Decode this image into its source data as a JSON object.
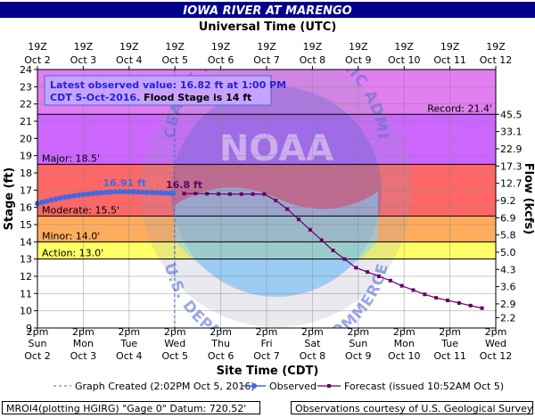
{
  "chart_data": {
    "type": "line",
    "title": "IOWA RIVER AT MARENGO",
    "top_axis_title": "Universal Time (UTC)",
    "bottom_axis_title": "Site Time (CDT)",
    "ylabel": "Stage (ft)",
    "ylabel_right": "Flow (kcfs)",
    "ylim": [
      9,
      24
    ],
    "y_ticks": [
      9,
      10,
      11,
      12,
      13,
      14,
      15,
      16,
      17,
      18,
      19,
      20,
      21,
      22,
      23,
      24
    ],
    "x_range_days": [
      0,
      10
    ],
    "top_ticks": [
      {
        "line1": "19Z",
        "line2": "Oct 2"
      },
      {
        "line1": "19Z",
        "line2": "Oct 3"
      },
      {
        "line1": "19Z",
        "line2": "Oct 4"
      },
      {
        "line1": "19Z",
        "line2": "Oct 5"
      },
      {
        "line1": "19Z",
        "line2": "Oct 6"
      },
      {
        "line1": "19Z",
        "line2": "Oct 7"
      },
      {
        "line1": "19Z",
        "line2": "Oct 8"
      },
      {
        "line1": "19Z",
        "line2": "Oct 9"
      },
      {
        "line1": "19Z",
        "line2": "Oct 10"
      },
      {
        "line1": "19Z",
        "line2": "Oct 11"
      },
      {
        "line1": "19Z",
        "line2": "Oct 12"
      }
    ],
    "bottom_ticks": [
      {
        "line1": "2pm",
        "line2": "Sun",
        "line3": "Oct 2"
      },
      {
        "line1": "2pm",
        "line2": "Mon",
        "line3": "Oct 3"
      },
      {
        "line1": "2pm",
        "line2": "Tue",
        "line3": "Oct 4"
      },
      {
        "line1": "2pm",
        "line2": "Wed",
        "line3": "Oct 5"
      },
      {
        "line1": "2pm",
        "line2": "Thu",
        "line3": "Oct 6"
      },
      {
        "line1": "2pm",
        "line2": "Fri",
        "line3": "Oct 7"
      },
      {
        "line1": "2pm",
        "line2": "Sat",
        "line3": "Oct 8"
      },
      {
        "line1": "2pm",
        "line2": "Sun",
        "line3": "Oct 9"
      },
      {
        "line1": "2pm",
        "line2": "Mon",
        "line3": "Oct 10"
      },
      {
        "line1": "2pm",
        "line2": "Tue",
        "line3": "Oct 11"
      },
      {
        "line1": "2pm",
        "line2": "Wed",
        "line3": "Oct 12"
      }
    ],
    "flow_ticks": [
      {
        "stage": 9.6,
        "label": "2.2"
      },
      {
        "stage": 10.4,
        "label": "2.9"
      },
      {
        "stage": 11.4,
        "label": "3.6"
      },
      {
        "stage": 12.4,
        "label": "4.3"
      },
      {
        "stage": 13.4,
        "label": "5.0"
      },
      {
        "stage": 14.4,
        "label": "5.8"
      },
      {
        "stage": 15.4,
        "label": "6.9"
      },
      {
        "stage": 16.4,
        "label": "9.2"
      },
      {
        "stage": 17.4,
        "label": "12.7"
      },
      {
        "stage": 18.4,
        "label": "17.3"
      },
      {
        "stage": 19.4,
        "label": "22.9"
      },
      {
        "stage": 20.4,
        "label": "33.1"
      },
      {
        "stage": 21.4,
        "label": "45.5"
      }
    ],
    "bands": [
      {
        "name": "Record",
        "from": 21.4,
        "to": 24,
        "color": "#e17ef0"
      },
      {
        "name": "Major",
        "from": 18.5,
        "to": 21.4,
        "color": "#cc66ff"
      },
      {
        "name": "Moderate",
        "from": 15.5,
        "to": 18.5,
        "color": "#ff6666"
      },
      {
        "name": "Minor",
        "from": 14.0,
        "to": 15.5,
        "color": "#ffad5c"
      },
      {
        "name": "Action",
        "from": 13.0,
        "to": 14.0,
        "color": "#ffff66"
      }
    ],
    "threshold_labels": [
      {
        "text": "Record: 21.4'",
        "stage": 21.4,
        "side": "right"
      },
      {
        "text": "Major: 18.5'",
        "stage": 18.5,
        "side": "left"
      },
      {
        "text": "Moderate: 15.5'",
        "stage": 15.5,
        "side": "left"
      },
      {
        "text": "Minor: 14.0'",
        "stage": 14.0,
        "side": "left"
      },
      {
        "text": "Action: 13.0'",
        "stage": 13.0,
        "side": "left"
      }
    ],
    "observed": {
      "name": "Observed",
      "color": "#4169e1",
      "x": [
        0,
        0.1,
        0.2,
        0.3,
        0.4,
        0.5,
        0.6,
        0.7,
        0.8,
        0.9,
        1.0,
        1.1,
        1.2,
        1.3,
        1.4,
        1.5,
        1.6,
        1.7,
        1.8,
        1.9,
        2.0,
        2.1,
        2.2,
        2.3,
        2.4,
        2.5,
        2.6,
        2.7,
        2.8,
        2.9,
        2.96
      ],
      "y": [
        16.22,
        16.29,
        16.36,
        16.42,
        16.48,
        16.54,
        16.59,
        16.63,
        16.67,
        16.71,
        16.74,
        16.77,
        16.8,
        16.83,
        16.85,
        16.87,
        16.89,
        16.9,
        16.91,
        16.91,
        16.91,
        16.9,
        16.89,
        16.88,
        16.87,
        16.86,
        16.85,
        16.84,
        16.83,
        16.82,
        16.82
      ]
    },
    "forecast": {
      "name": "Forecast (issued 10:52AM Oct 5)",
      "color": "#660066",
      "x": [
        3.2,
        3.45,
        3.7,
        3.95,
        4.2,
        4.45,
        4.7,
        4.95,
        5.2,
        5.45,
        5.7,
        5.95,
        6.2,
        6.45,
        6.7,
        6.95,
        7.2,
        7.45,
        7.7,
        7.95,
        8.2,
        8.45,
        8.7,
        8.95,
        9.2,
        9.45,
        9.7
      ],
      "y": [
        16.8,
        16.8,
        16.79,
        16.78,
        16.77,
        16.77,
        16.77,
        16.77,
        16.4,
        15.9,
        15.3,
        14.7,
        14.1,
        13.5,
        13.0,
        12.5,
        12.25,
        12.0,
        11.75,
        11.45,
        11.2,
        10.95,
        10.75,
        10.6,
        10.45,
        10.3,
        10.15
      ]
    },
    "annotations": [
      {
        "text": "16.91 ft",
        "x": 1.9,
        "y": 16.91,
        "color": "#4169e1"
      },
      {
        "text": "16.8 ft",
        "x": 3.2,
        "y": 16.8,
        "color": "#660066"
      }
    ],
    "graph_created_x": 2.99,
    "info_box": {
      "line1": "Latest observed value: 16.82 ft at 1:00 PM",
      "line2a": "CDT 5-Oct-2016.",
      "line2b": "Flood Stage is 14 ft"
    },
    "watermark": {
      "agency": "NOAA",
      "top_arc": "NATIONAL OCEANIC AND ATMOSPHERIC ADMINISTRATION",
      "bottom_arc": "U.S. DEPARTMENT OF COMMERCE"
    },
    "legend": [
      {
        "label": "Graph Created (2:02PM Oct 5, 2016)",
        "style": "dashed",
        "color": "#4169e1"
      },
      {
        "label": "Observed",
        "style": "dot-line",
        "color": "#4169e1"
      },
      {
        "label": "Forecast (issued 10:52AM Oct 5)",
        "style": "square-line",
        "color": "#660066"
      }
    ]
  },
  "footer": {
    "left": "MROI4(plotting HGIRG) \"Gage 0\" Datum: 720.52'",
    "right": "Observations courtesy of U.S. Geological Survey"
  }
}
